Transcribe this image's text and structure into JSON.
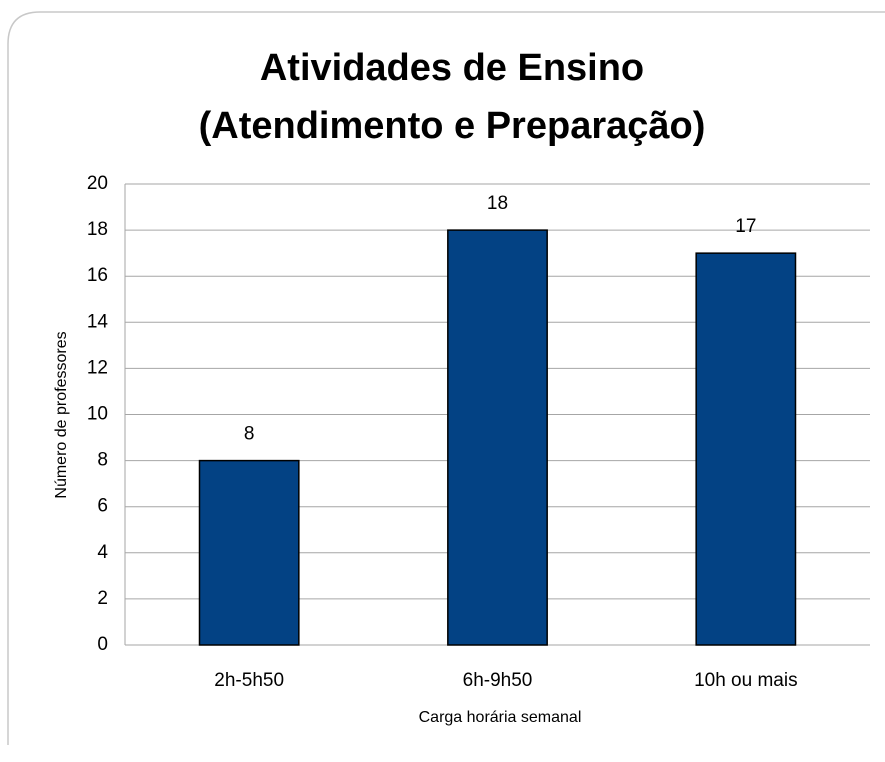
{
  "chart_data": {
    "type": "bar",
    "title": [
      "Atividades de Ensino",
      "(Atendimento e Preparação)"
    ],
    "x_label": "Carga horária  semanal",
    "y_label": "Número de professores",
    "categories": [
      "2h-5h50",
      "6h-9h50",
      "10h ou mais"
    ],
    "values": [
      8,
      18,
      17
    ],
    "color": "#034284",
    "ylim": [
      0,
      20
    ],
    "yticks": [
      0,
      2,
      4,
      6,
      8,
      10,
      12,
      14,
      16,
      18,
      20
    ],
    "grid": true
  }
}
